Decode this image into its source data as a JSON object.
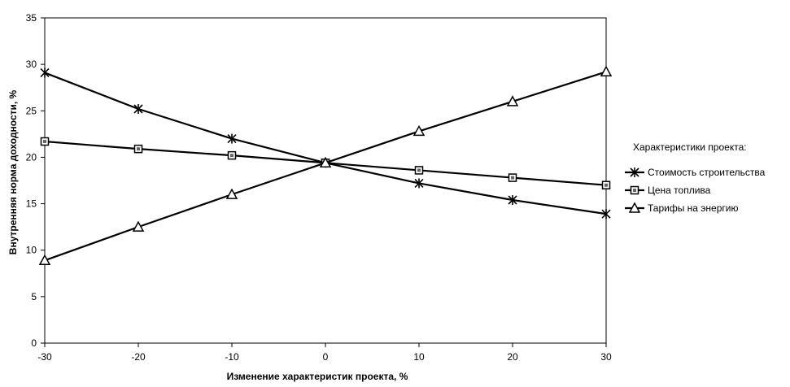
{
  "chart_data": {
    "type": "line",
    "x": [
      -30,
      -20,
      -10,
      0,
      10,
      20,
      30
    ],
    "xlabel": "Изменение характеристик проекта, %",
    "ylabel": "Внутренняя норма доходности, %",
    "xlim": [
      -30,
      30
    ],
    "ylim": [
      0,
      35
    ],
    "x_ticks": [
      -30,
      -20,
      -10,
      0,
      10,
      20,
      30
    ],
    "y_ticks": [
      0,
      5,
      10,
      15,
      20,
      25,
      30,
      35
    ],
    "grid": false,
    "legend_title": "Характеристики проекта:",
    "legend_position": "right",
    "series": [
      {
        "name": "Стоимость строительства",
        "marker": "asterisk",
        "values": [
          29.1,
          25.2,
          22.0,
          19.4,
          17.2,
          15.4,
          13.9
        ]
      },
      {
        "name": "Цена топлива",
        "marker": "square",
        "values": [
          21.7,
          20.9,
          20.2,
          19.4,
          18.6,
          17.8,
          17.0
        ]
      },
      {
        "name": "Тарифы на энергию",
        "marker": "triangle",
        "values": [
          8.9,
          12.5,
          16.0,
          19.4,
          22.8,
          26.0,
          29.2
        ]
      }
    ],
    "colors": {
      "line": "#000000",
      "background": "#ffffff"
    }
  }
}
